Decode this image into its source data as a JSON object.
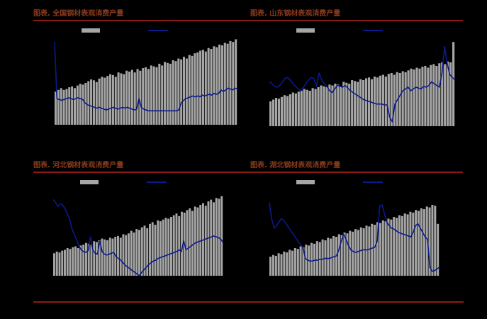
{
  "colors": {
    "background": "#000000",
    "rule": "#8b1a1a",
    "title": "#8a3a1c",
    "bar": "#a6a6a6",
    "line": "#0a1a8c"
  },
  "chart_data": [
    {
      "type": "bar",
      "title": "图表. 全国钢材表观消费产量",
      "legend_position": "top",
      "ylim": [
        0,
        100
      ],
      "series": [
        {
          "type": "bar",
          "values": [
            38,
            40,
            42,
            40,
            41,
            43,
            44,
            42,
            45,
            47,
            46,
            48,
            50,
            52,
            51,
            49,
            53,
            55,
            54,
            56,
            58,
            57,
            55,
            60,
            59,
            58,
            62,
            61,
            63,
            60,
            64,
            62,
            65,
            66,
            64,
            68,
            67,
            66,
            70,
            68,
            72,
            71,
            70,
            74,
            73,
            76,
            75,
            78,
            76,
            80,
            79,
            82,
            83,
            85,
            86,
            84,
            88,
            87,
            90,
            89,
            92,
            91,
            94,
            93,
            96,
            95,
            98
          ]
        },
        {
          "type": "line",
          "values": [
            95,
            30,
            29,
            28,
            29,
            30,
            31,
            30,
            29,
            30,
            31,
            30,
            29,
            25,
            23,
            22,
            21,
            20,
            19,
            20,
            19,
            18,
            17,
            18,
            19,
            20,
            19,
            18,
            19,
            20,
            19,
            20,
            19,
            18,
            17,
            18,
            30,
            20,
            18,
            17,
            16,
            16,
            16,
            16,
            16,
            16,
            16,
            16,
            16,
            16,
            16,
            16,
            16,
            17,
            25,
            28,
            30,
            31,
            32,
            33,
            32,
            33,
            32,
            34,
            33,
            34,
            35,
            34,
            36,
            35,
            36,
            40,
            38,
            40,
            42,
            41,
            40,
            42,
            41
          ]
        }
      ]
    },
    {
      "type": "bar",
      "title": "图表. 山东钢材表观消费产量",
      "legend_position": "top",
      "ylim": [
        0,
        100
      ],
      "series": [
        {
          "type": "bar",
          "values": [
            28,
            30,
            32,
            31,
            33,
            35,
            34,
            36,
            38,
            37,
            39,
            40,
            42,
            41,
            40,
            43,
            42,
            44,
            46,
            45,
            44,
            47,
            46,
            48,
            47,
            45,
            50,
            49,
            48,
            52,
            51,
            50,
            53,
            52,
            54,
            55,
            53,
            56,
            55,
            57,
            58,
            56,
            59,
            60,
            58,
            61,
            60,
            62,
            61,
            63,
            65,
            64,
            66,
            65,
            67,
            68,
            66,
            69,
            70,
            68,
            71,
            72,
            70,
            73,
            72,
            95
          ]
        },
        {
          "type": "line",
          "values": [
            50,
            48,
            45,
            44,
            46,
            50,
            54,
            55,
            52,
            48,
            45,
            42,
            40,
            44,
            48,
            52,
            55,
            54,
            45,
            60,
            52,
            48,
            45,
            40,
            38,
            42,
            46,
            45,
            44,
            46,
            43,
            40,
            38,
            36,
            34,
            32,
            30,
            29,
            28,
            27,
            26,
            25,
            25,
            25,
            24,
            24,
            10,
            5,
            25,
            30,
            35,
            40,
            42,
            44,
            40,
            42,
            44,
            43,
            42,
            45,
            44,
            46,
            50,
            48,
            46,
            44,
            60,
            90,
            70,
            58,
            55,
            52
          ]
        }
      ]
    },
    {
      "type": "bar",
      "title": "图表. 河北钢材表观消费产量",
      "legend_position": "top",
      "ylim": [
        0,
        100
      ],
      "series": [
        {
          "type": "bar",
          "values": [
            26,
            28,
            27,
            29,
            30,
            32,
            31,
            33,
            34,
            32,
            35,
            36,
            38,
            37,
            36,
            40,
            39,
            41,
            43,
            42,
            41,
            44,
            43,
            45,
            46,
            44,
            48,
            47,
            49,
            52,
            50,
            54,
            53,
            56,
            58,
            55,
            60,
            62,
            59,
            64,
            63,
            65,
            67,
            66,
            68,
            70,
            72,
            69,
            74,
            73,
            76,
            78,
            75,
            80,
            79,
            82,
            84,
            81,
            86,
            88,
            85,
            90,
            89,
            92
          ]
        },
        {
          "type": "line",
          "values": [
            88,
            85,
            80,
            83,
            82,
            78,
            72,
            66,
            55,
            48,
            42,
            35,
            30,
            28,
            27,
            29,
            45,
            30,
            26,
            25,
            40,
            28,
            25,
            24,
            25,
            26,
            27,
            22,
            20,
            18,
            15,
            12,
            10,
            8,
            6,
            4,
            2,
            0,
            4,
            7,
            10,
            13,
            15,
            17,
            18,
            20,
            21,
            22,
            23,
            24,
            25,
            26,
            27,
            28,
            30,
            28,
            40,
            30,
            32,
            34,
            36,
            38,
            39,
            40,
            41,
            42,
            43,
            44,
            45,
            46,
            45,
            44,
            42,
            38
          ]
        }
      ]
    },
    {
      "type": "bar",
      "title": "图表. 湖北钢材表观消费产量",
      "legend_position": "top",
      "ylim": [
        0,
        100
      ],
      "series": [
        {
          "type": "bar",
          "values": [
            22,
            24,
            23,
            26,
            25,
            28,
            27,
            30,
            29,
            32,
            31,
            34,
            33,
            36,
            35,
            38,
            37,
            40,
            39,
            42,
            41,
            44,
            43,
            46,
            45,
            48,
            47,
            50,
            49,
            52,
            51,
            54,
            53,
            56,
            55,
            58,
            57,
            60,
            59,
            62,
            61,
            64,
            63,
            66,
            65,
            68,
            67,
            70,
            69,
            72,
            71,
            74,
            73,
            76,
            75,
            78,
            77,
            80,
            79,
            82,
            81,
            60
          ]
        },
        {
          "type": "line",
          "values": [
            85,
            65,
            55,
            58,
            62,
            66,
            64,
            60,
            56,
            52,
            48,
            44,
            40,
            36,
            33,
            20,
            18,
            17,
            17,
            18,
            18,
            19,
            19,
            20,
            20,
            20,
            21,
            22,
            23,
            30,
            40,
            48,
            42,
            35,
            30,
            28,
            27,
            28,
            29,
            30,
            30,
            30,
            31,
            32,
            33,
            40,
            80,
            82,
            72,
            62,
            58,
            55,
            54,
            52,
            50,
            49,
            48,
            47,
            46,
            45,
            50,
            58,
            60,
            55,
            50,
            45,
            42,
            10,
            5,
            6,
            8,
            10
          ]
        }
      ]
    }
  ]
}
